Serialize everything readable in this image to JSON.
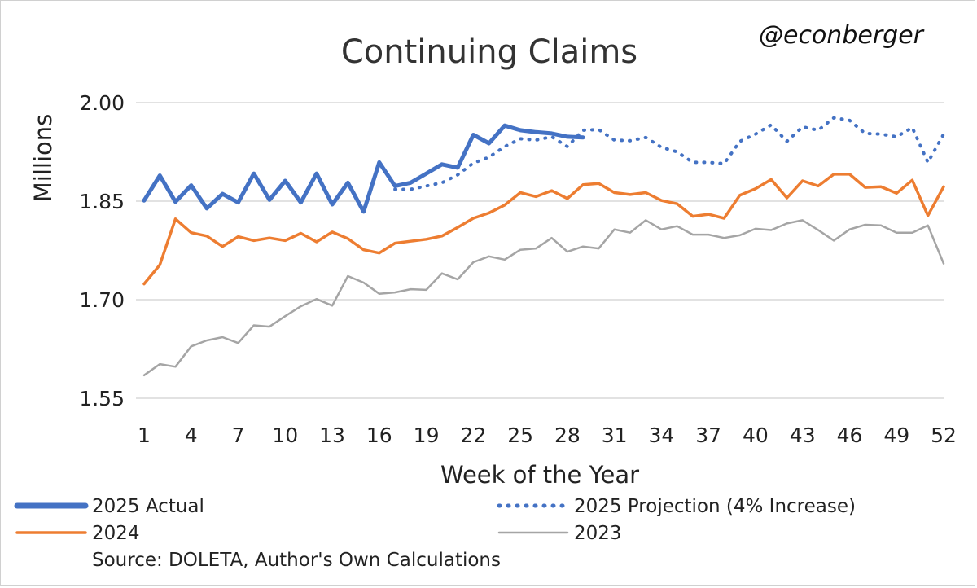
{
  "colors": {
    "actual_2025": "#4472C4",
    "projection_2025": "#4472C4",
    "y2024": "#ED7D31",
    "y2023": "#A5A5A5",
    "grid": "#D9D9D9"
  },
  "handle": "@econberger",
  "source": "Source: DOLETA, Author's Own Calculations",
  "chart_data": {
    "type": "line",
    "title": "Continuing Claims",
    "xlabel": "Week of the Year",
    "ylabel": "Millions",
    "ylim": [
      1.55,
      2.0
    ],
    "yticks": [
      "2.00",
      "1.85",
      "1.70",
      "1.55"
    ],
    "ytick_values": [
      2.0,
      1.85,
      1.7,
      1.55
    ],
    "xlim": [
      1,
      52
    ],
    "xticks": [
      1,
      4,
      7,
      10,
      13,
      16,
      19,
      22,
      25,
      28,
      31,
      34,
      37,
      40,
      43,
      46,
      49,
      52
    ],
    "grid": true,
    "legend": "bottom",
    "series": [
      {
        "name": "2025 Actual",
        "style": "solid-thick",
        "x": [
          1,
          2,
          3,
          4,
          5,
          6,
          7,
          8,
          9,
          10,
          11,
          12,
          13,
          14,
          15,
          16,
          17,
          18,
          19,
          20,
          21,
          22,
          23,
          24,
          25,
          26,
          27,
          28,
          29
        ],
        "values": [
          1.851,
          1.889,
          1.849,
          1.874,
          1.839,
          1.861,
          1.848,
          1.892,
          1.852,
          1.881,
          1.848,
          1.892,
          1.845,
          1.878,
          1.834,
          1.909,
          1.873,
          1.878,
          1.892,
          1.906,
          1.901,
          1.951,
          1.938,
          1.965,
          1.958,
          1.955,
          1.953,
          1.948,
          1.947
        ]
      },
      {
        "name": "2025 Projection (4% Increase)",
        "style": "dotted",
        "x": [
          17,
          18,
          19,
          20,
          21,
          22,
          23,
          24,
          25,
          26,
          27,
          28,
          29,
          30,
          31,
          32,
          33,
          34,
          35,
          36,
          37,
          38,
          39,
          40,
          41,
          42,
          43,
          44,
          45,
          46,
          47,
          48,
          49,
          50,
          51,
          52
        ],
        "values": [
          1.868,
          1.868,
          1.873,
          1.878,
          1.89,
          1.908,
          1.917,
          1.933,
          1.945,
          1.943,
          1.948,
          1.933,
          1.958,
          1.959,
          1.943,
          1.942,
          1.947,
          1.932,
          1.925,
          1.909,
          1.909,
          1.907,
          1.941,
          1.952,
          1.966,
          1.941,
          1.963,
          1.958,
          1.977,
          1.973,
          1.953,
          1.952,
          1.948,
          1.962,
          1.909,
          1.952
        ]
      },
      {
        "name": "2024",
        "style": "solid",
        "x": [
          1,
          2,
          3,
          4,
          5,
          6,
          7,
          8,
          9,
          10,
          11,
          12,
          13,
          14,
          15,
          16,
          17,
          18,
          19,
          20,
          21,
          22,
          23,
          24,
          25,
          26,
          27,
          28,
          29,
          30,
          31,
          32,
          33,
          34,
          35,
          36,
          37,
          38,
          39,
          40,
          41,
          42,
          43,
          44,
          45,
          46,
          47,
          48,
          49,
          50,
          51,
          52
        ],
        "values": [
          1.724,
          1.753,
          1.823,
          1.802,
          1.797,
          1.781,
          1.796,
          1.79,
          1.794,
          1.79,
          1.801,
          1.788,
          1.803,
          1.793,
          1.776,
          1.771,
          1.786,
          1.789,
          1.792,
          1.797,
          1.81,
          1.824,
          1.832,
          1.844,
          1.863,
          1.857,
          1.866,
          1.854,
          1.875,
          1.877,
          1.863,
          1.86,
          1.863,
          1.851,
          1.846,
          1.827,
          1.83,
          1.824,
          1.859,
          1.869,
          1.883,
          1.855,
          1.881,
          1.873,
          1.891,
          1.891,
          1.871,
          1.872,
          1.862,
          1.882,
          1.828,
          1.872
        ]
      },
      {
        "name": "2023",
        "style": "solid",
        "x": [
          1,
          2,
          3,
          4,
          5,
          6,
          7,
          8,
          9,
          10,
          11,
          12,
          13,
          14,
          15,
          16,
          17,
          18,
          19,
          20,
          21,
          22,
          23,
          24,
          25,
          26,
          27,
          28,
          29,
          30,
          31,
          32,
          33,
          34,
          35,
          36,
          37,
          38,
          39,
          40,
          41,
          42,
          43,
          44,
          45,
          46,
          47,
          48,
          49,
          50,
          51,
          52
        ],
        "values": [
          1.585,
          1.602,
          1.598,
          1.629,
          1.638,
          1.643,
          1.634,
          1.661,
          1.659,
          1.675,
          1.69,
          1.701,
          1.691,
          1.736,
          1.726,
          1.709,
          1.711,
          1.716,
          1.715,
          1.74,
          1.731,
          1.757,
          1.766,
          1.761,
          1.776,
          1.778,
          1.794,
          1.773,
          1.781,
          1.778,
          1.807,
          1.802,
          1.821,
          1.807,
          1.812,
          1.799,
          1.799,
          1.794,
          1.798,
          1.808,
          1.806,
          1.816,
          1.821,
          1.806,
          1.79,
          1.807,
          1.814,
          1.813,
          1.802,
          1.802,
          1.813,
          1.755
        ]
      }
    ]
  }
}
